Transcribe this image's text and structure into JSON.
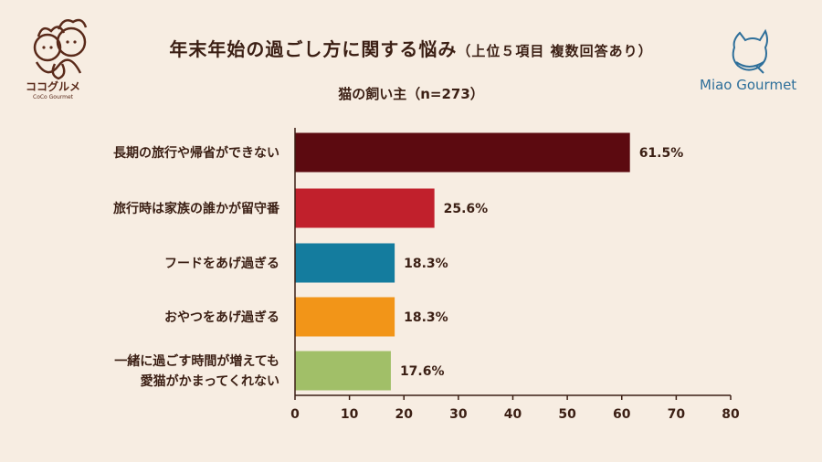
{
  "header": {
    "title_main": "年末年始の過ごし方に関する悩み",
    "title_sub": "（上位５項目 複数回答あり）",
    "subtitle": "猫の飼い主（n=273）"
  },
  "logos": {
    "left_name": "ココグルメ",
    "left_small": "CoCo Gourmet",
    "right_name": "Miao Gourmet"
  },
  "chart_data": {
    "type": "bar",
    "orientation": "horizontal",
    "categories": [
      [
        "長期の旅行や帰省ができない"
      ],
      [
        "旅行時は家族の誰かが留守番"
      ],
      [
        "フードをあげ過ぎる"
      ],
      [
        "おやつをあげ過ぎる"
      ],
      [
        "一緒に過ごす時間が増えても",
        "愛猫がかまってくれない"
      ]
    ],
    "values": [
      61.5,
      25.6,
      18.3,
      18.3,
      17.6
    ],
    "value_labels": [
      "61.5%",
      "25.6%",
      "18.3%",
      "18.3%",
      "17.6%"
    ],
    "colors": [
      "#5c0a10",
      "#c1202c",
      "#147c9e",
      "#f29518",
      "#a1bf68"
    ],
    "xlim": [
      0,
      80
    ],
    "xticks": [
      0,
      10,
      20,
      30,
      40,
      50,
      60,
      70,
      80
    ],
    "grid": false
  }
}
